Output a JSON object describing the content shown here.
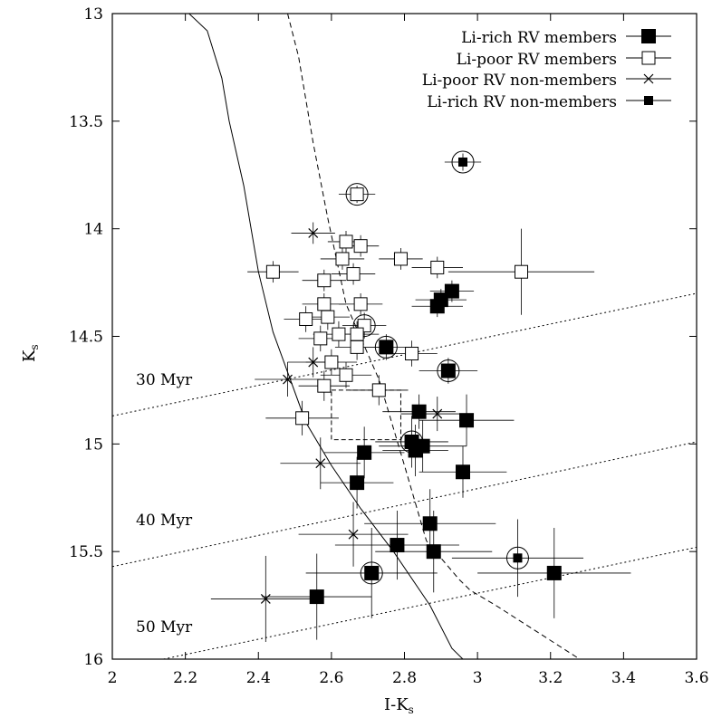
{
  "chart_data": {
    "type": "scatter",
    "xlabel": "I-K",
    "xlabel_sub": "s",
    "ylabel": "K",
    "ylabel_sub": "s",
    "xlim": [
      2,
      3.6
    ],
    "ylim": [
      16,
      13
    ],
    "y_inverted": true,
    "x_ticks": [
      "2",
      "2.2",
      "2.4",
      "2.6",
      "2.8",
      "3",
      "3.2",
      "3.4",
      "3.6"
    ],
    "y_ticks": [
      "13",
      "13.5",
      "14",
      "14.5",
      "15",
      "15.5",
      "16"
    ],
    "grid": false,
    "legend_position": "top-right",
    "legend": [
      {
        "label": "Li-rich RV members",
        "marker": "filled-square-large"
      },
      {
        "label": "Li-poor RV members",
        "marker": "open-square"
      },
      {
        "label": "Li-poor RV non-members",
        "marker": "cross"
      },
      {
        "label": "Li-rich RV non-members",
        "marker": "filled-square-small"
      }
    ],
    "isochrone_labels": [
      "30 Myr",
      "40 Myr",
      "50 Myr"
    ],
    "series": [
      {
        "name": "Li-rich RV members",
        "marker": "filled-square-large",
        "points": [
          {
            "x": 2.93,
            "y": 14.29,
            "xerr": 0.06,
            "yerr": 0.05
          },
          {
            "x": 2.9,
            "y": 14.33,
            "xerr": 0.07,
            "yerr": 0.05
          },
          {
            "x": 2.89,
            "y": 14.36,
            "xerr": 0.07,
            "yerr": 0.05
          },
          {
            "x": 2.75,
            "y": 14.55,
            "xerr": 0.07,
            "yerr": 0.06,
            "circled": true
          },
          {
            "x": 2.92,
            "y": 14.66,
            "xerr": 0.08,
            "yerr": 0.06,
            "circled": true
          },
          {
            "x": 2.84,
            "y": 14.85,
            "xerr": 0.1,
            "yerr": 0.08
          },
          {
            "x": 2.97,
            "y": 14.89,
            "xerr": 0.13,
            "yerr": 0.12
          },
          {
            "x": 2.82,
            "y": 14.99,
            "xerr": 0.1,
            "yerr": 0.12,
            "circled": true
          },
          {
            "x": 2.85,
            "y": 15.01,
            "xerr": 0.12,
            "yerr": 0.12
          },
          {
            "x": 2.83,
            "y": 15.03,
            "xerr": 0.09,
            "yerr": 0.12
          },
          {
            "x": 2.69,
            "y": 15.04,
            "xerr": 0.11,
            "yerr": 0.12
          },
          {
            "x": 2.96,
            "y": 15.13,
            "xerr": 0.12,
            "yerr": 0.12
          },
          {
            "x": 2.67,
            "y": 15.18,
            "xerr": 0.1,
            "yerr": 0.12
          },
          {
            "x": 2.87,
            "y": 15.37,
            "xerr": 0.18,
            "yerr": 0.16
          },
          {
            "x": 2.78,
            "y": 15.47,
            "xerr": 0.17,
            "yerr": 0.16
          },
          {
            "x": 2.88,
            "y": 15.5,
            "xerr": 0.16,
            "yerr": 0.19
          },
          {
            "x": 2.71,
            "y": 15.6,
            "xerr": 0.18,
            "yerr": 0.21,
            "circled": true
          },
          {
            "x": 3.21,
            "y": 15.6,
            "xerr": 0.21,
            "yerr": 0.21
          },
          {
            "x": 2.56,
            "y": 15.71,
            "xerr": 0.15,
            "yerr": 0.2
          }
        ]
      },
      {
        "name": "Li-poor RV members",
        "marker": "open-square",
        "points": [
          {
            "x": 2.67,
            "y": 13.84,
            "xerr": 0.05,
            "yerr": 0.04,
            "circled": true
          },
          {
            "x": 2.64,
            "y": 14.06,
            "xerr": 0.05,
            "yerr": 0.05
          },
          {
            "x": 2.68,
            "y": 14.08,
            "xerr": 0.05,
            "yerr": 0.05
          },
          {
            "x": 2.63,
            "y": 14.14,
            "xerr": 0.06,
            "yerr": 0.05
          },
          {
            "x": 2.79,
            "y": 14.14,
            "xerr": 0.06,
            "yerr": 0.05
          },
          {
            "x": 2.44,
            "y": 14.2,
            "xerr": 0.07,
            "yerr": 0.05
          },
          {
            "x": 2.66,
            "y": 14.21,
            "xerr": 0.06,
            "yerr": 0.05
          },
          {
            "x": 2.89,
            "y": 14.18,
            "xerr": 0.07,
            "yerr": 0.05
          },
          {
            "x": 3.12,
            "y": 14.2,
            "xerr": 0.2,
            "yerr": 0.2
          },
          {
            "x": 2.58,
            "y": 14.24,
            "xerr": 0.06,
            "yerr": 0.05
          },
          {
            "x": 2.58,
            "y": 14.35,
            "xerr": 0.06,
            "yerr": 0.05
          },
          {
            "x": 2.68,
            "y": 14.35,
            "xerr": 0.06,
            "yerr": 0.05
          },
          {
            "x": 2.53,
            "y": 14.42,
            "xerr": 0.06,
            "yerr": 0.06
          },
          {
            "x": 2.59,
            "y": 14.41,
            "xerr": 0.06,
            "yerr": 0.06
          },
          {
            "x": 2.69,
            "y": 14.45,
            "xerr": 0.06,
            "yerr": 0.06,
            "circled": true
          },
          {
            "x": 2.62,
            "y": 14.49,
            "xerr": 0.07,
            "yerr": 0.06
          },
          {
            "x": 2.67,
            "y": 14.49,
            "xerr": 0.06,
            "yerr": 0.06
          },
          {
            "x": 2.57,
            "y": 14.51,
            "xerr": 0.06,
            "yerr": 0.06
          },
          {
            "x": 2.67,
            "y": 14.55,
            "xerr": 0.06,
            "yerr": 0.06
          },
          {
            "x": 2.82,
            "y": 14.58,
            "xerr": 0.07,
            "yerr": 0.06
          },
          {
            "x": 2.6,
            "y": 14.62,
            "xerr": 0.07,
            "yerr": 0.06
          },
          {
            "x": 2.64,
            "y": 14.68,
            "xerr": 0.07,
            "yerr": 0.06
          },
          {
            "x": 2.58,
            "y": 14.73,
            "xerr": 0.07,
            "yerr": 0.07
          },
          {
            "x": 2.73,
            "y": 14.75,
            "xerr": 0.08,
            "yerr": 0.07
          },
          {
            "x": 2.52,
            "y": 14.88,
            "xerr": 0.1,
            "yerr": 0.08
          }
        ]
      },
      {
        "name": "Li-poor RV non-members",
        "marker": "cross",
        "points": [
          {
            "x": 2.55,
            "y": 14.02,
            "xerr": 0.06,
            "yerr": 0.05
          },
          {
            "x": 2.55,
            "y": 14.62,
            "xerr": 0.07,
            "yerr": 0.07
          },
          {
            "x": 2.48,
            "y": 14.7,
            "xerr": 0.09,
            "yerr": 0.08
          },
          {
            "x": 2.89,
            "y": 14.86,
            "xerr": 0.1,
            "yerr": 0.08
          },
          {
            "x": 2.57,
            "y": 15.09,
            "xerr": 0.11,
            "yerr": 0.12
          },
          {
            "x": 2.66,
            "y": 15.42,
            "xerr": 0.15,
            "yerr": 0.15
          },
          {
            "x": 2.42,
            "y": 15.72,
            "xerr": 0.15,
            "yerr": 0.2
          }
        ]
      },
      {
        "name": "Li-rich RV non-members",
        "marker": "filled-square-small",
        "points": [
          {
            "x": 2.96,
            "y": 13.69,
            "xerr": 0.05,
            "yerr": 0.04,
            "circled": true
          },
          {
            "x": 3.11,
            "y": 15.53,
            "xerr": 0.18,
            "yerr": 0.18,
            "circled": true
          }
        ]
      }
    ],
    "curves": [
      {
        "style": "solid",
        "points": [
          [
            2.21,
            13.0
          ],
          [
            2.26,
            13.08
          ],
          [
            2.3,
            13.3
          ],
          [
            2.32,
            13.5
          ],
          [
            2.36,
            13.8
          ],
          [
            2.4,
            14.2
          ],
          [
            2.44,
            14.48
          ],
          [
            2.53,
            14.9
          ],
          [
            2.6,
            15.1
          ],
          [
            2.68,
            15.3
          ],
          [
            2.77,
            15.5
          ],
          [
            2.87,
            15.75
          ],
          [
            2.93,
            15.95
          ],
          [
            2.96,
            16.0
          ]
        ]
      },
      {
        "style": "dashed",
        "points": [
          [
            2.48,
            13.0
          ],
          [
            2.51,
            13.2
          ],
          [
            2.55,
            13.6
          ],
          [
            2.59,
            13.95
          ],
          [
            2.64,
            14.35
          ],
          [
            2.73,
            14.7
          ],
          [
            2.8,
            15.1
          ],
          [
            2.86,
            15.45
          ],
          [
            2.95,
            15.63
          ],
          [
            2.98,
            15.68
          ],
          [
            3.05,
            15.75
          ],
          [
            3.28,
            16.0
          ]
        ]
      },
      {
        "style": "dotted",
        "points": [
          [
            2.0,
            14.87
          ],
          [
            3.6,
            14.3
          ]
        ]
      },
      {
        "style": "dotted",
        "points": [
          [
            2.0,
            15.57
          ],
          [
            3.6,
            14.99
          ]
        ]
      },
      {
        "style": "dotted",
        "points": [
          [
            2.14,
            16.0
          ],
          [
            3.6,
            15.48
          ]
        ]
      }
    ],
    "dashed_box": {
      "x": [
        2.6,
        2.79
      ],
      "y": [
        14.75,
        14.98
      ]
    }
  }
}
